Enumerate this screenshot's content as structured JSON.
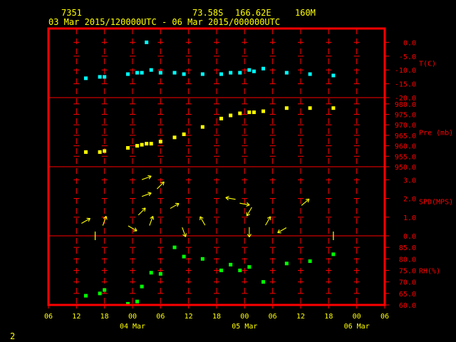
{
  "header": {
    "station": "7351",
    "lat": "73.58S",
    "lon": "166.62E",
    "elev": "160M",
    "period": "03 Mar 2015/120000UTC - 06 Mar 2015/000000UTC"
  },
  "page_number": "2",
  "colors": {
    "frame": "#ff0000",
    "grid": "#ff0000",
    "text": "#ffff00",
    "axis_labels": "#ff0000",
    "temperature": "#00ffff",
    "pressure": "#ffff00",
    "wind": "#ffff00",
    "rh": "#00ff00"
  },
  "chart_data": {
    "type": "scatter",
    "x_axis": {
      "unit": "hour",
      "start": "2015-03-03T06:00Z",
      "end": "2015-03-06T06:00Z",
      "tick_labels": [
        "06",
        "12",
        "18",
        "00",
        "06",
        "12",
        "18",
        "00",
        "06",
        "12",
        "18",
        "00",
        "06"
      ],
      "date_labels": [
        {
          "label": "04 Mar",
          "time": "2015-03-04T00:00Z"
        },
        {
          "label": "05 Mar",
          "time": "2015-03-05T00:00Z"
        },
        {
          "label": "06 Mar",
          "time": "2015-03-06T00:00Z"
        }
      ]
    },
    "panels": [
      {
        "name": "T(C)",
        "series": "temperature",
        "ylim": [
          -20,
          5
        ],
        "ticks": [
          0,
          -5,
          -10,
          -15,
          -20
        ],
        "tick_labels": [
          "0.0",
          "-5.0",
          "-10.0",
          "-15.0",
          "-20.0"
        ],
        "points": [
          [
            "2015-03-03T14:00Z",
            -13
          ],
          [
            "2015-03-03T17:00Z",
            -12.5
          ],
          [
            "2015-03-03T18:00Z",
            -12.5
          ],
          [
            "2015-03-03T23:00Z",
            -11.5
          ],
          [
            "2015-03-04T01:00Z",
            -11
          ],
          [
            "2015-03-04T02:00Z",
            -11
          ],
          [
            "2015-03-04T03:00Z",
            0
          ],
          [
            "2015-03-04T04:00Z",
            -10
          ],
          [
            "2015-03-04T06:00Z",
            -11
          ],
          [
            "2015-03-04T09:00Z",
            -11
          ],
          [
            "2015-03-04T11:00Z",
            -11.5
          ],
          [
            "2015-03-04T15:00Z",
            -11.5
          ],
          [
            "2015-03-04T19:00Z",
            -11.5
          ],
          [
            "2015-03-04T21:00Z",
            -11
          ],
          [
            "2015-03-04T23:00Z",
            -11
          ],
          [
            "2015-03-05T01:00Z",
            -10
          ],
          [
            "2015-03-05T02:00Z",
            -10.5
          ],
          [
            "2015-03-05T04:00Z",
            -9.5
          ],
          [
            "2015-03-05T09:00Z",
            -11
          ],
          [
            "2015-03-05T14:00Z",
            -11.5
          ],
          [
            "2015-03-05T19:00Z",
            -12
          ]
        ]
      },
      {
        "name": "Pre (mb)",
        "series": "pressure",
        "ylim": [
          950,
          983
        ],
        "ticks": [
          980,
          975,
          970,
          965,
          960,
          955,
          950
        ],
        "tick_labels": [
          "980.0",
          "975.0",
          "970.0",
          "965.0",
          "960.0",
          "955.0",
          "950.0"
        ],
        "points": [
          [
            "2015-03-03T14:00Z",
            957
          ],
          [
            "2015-03-03T17:00Z",
            957
          ],
          [
            "2015-03-03T18:00Z",
            957.5
          ],
          [
            "2015-03-03T23:00Z",
            959
          ],
          [
            "2015-03-04T01:00Z",
            960
          ],
          [
            "2015-03-04T02:00Z",
            960.5
          ],
          [
            "2015-03-04T03:00Z",
            961
          ],
          [
            "2015-03-04T04:00Z",
            961
          ],
          [
            "2015-03-04T06:00Z",
            962
          ],
          [
            "2015-03-04T09:00Z",
            964
          ],
          [
            "2015-03-04T11:00Z",
            965.5
          ],
          [
            "2015-03-04T15:00Z",
            969
          ],
          [
            "2015-03-04T19:00Z",
            973
          ],
          [
            "2015-03-04T21:00Z",
            974.5
          ],
          [
            "2015-03-04T23:00Z",
            975.5
          ],
          [
            "2015-03-05T01:00Z",
            976
          ],
          [
            "2015-03-05T02:00Z",
            976
          ],
          [
            "2015-03-05T04:00Z",
            976.5
          ],
          [
            "2015-03-05T09:00Z",
            978
          ],
          [
            "2015-03-05T14:00Z",
            978
          ],
          [
            "2015-03-05T19:00Z",
            978
          ]
        ]
      },
      {
        "name": "SPD(MPS)",
        "series": "wind",
        "ylim": [
          0,
          3.7
        ],
        "ticks": [
          3,
          2,
          1,
          0
        ],
        "tick_labels": [
          "3.0",
          "2.0",
          "1.0",
          "0.0"
        ],
        "points": [
          [
            "2015-03-03T14:00Z",
            0.8,
            60
          ],
          [
            "2015-03-03T16:00Z",
            0,
            0
          ],
          [
            "2015-03-03T18:00Z",
            0.8,
            20
          ],
          [
            "2015-03-04T00:00Z",
            0.4,
            120
          ],
          [
            "2015-03-04T02:00Z",
            1.3,
            45
          ],
          [
            "2015-03-04T03:00Z",
            2.2,
            70
          ],
          [
            "2015-03-04T03:00Z",
            3.1,
            70
          ],
          [
            "2015-03-04T04:00Z",
            0.8,
            20
          ],
          [
            "2015-03-04T06:00Z",
            2.7,
            45
          ],
          [
            "2015-03-04T09:00Z",
            1.6,
            60
          ],
          [
            "2015-03-04T11:00Z",
            0.2,
            160
          ],
          [
            "2015-03-04T15:00Z",
            0.8,
            330
          ],
          [
            "2015-03-04T21:00Z",
            2.0,
            280
          ],
          [
            "2015-03-05T00:00Z",
            1.7,
            100
          ],
          [
            "2015-03-05T01:00Z",
            0.2,
            180
          ],
          [
            "2015-03-05T01:00Z",
            1.3,
            210
          ],
          [
            "2015-03-05T05:00Z",
            0.8,
            30
          ],
          [
            "2015-03-05T08:00Z",
            0.3,
            240
          ],
          [
            "2015-03-05T13:00Z",
            1.8,
            50
          ],
          [
            "2015-03-05T19:00Z",
            0,
            0
          ]
        ]
      },
      {
        "name": "RH(%)",
        "series": "rh",
        "ylim": [
          60,
          90
        ],
        "ticks": [
          85,
          80,
          75,
          70,
          65,
          60
        ],
        "tick_labels": [
          "85.0",
          "80.0",
          "75.0",
          "70.0",
          "65.0",
          "60.0"
        ],
        "points": [
          [
            "2015-03-03T14:00Z",
            64
          ],
          [
            "2015-03-03T17:00Z",
            65
          ],
          [
            "2015-03-03T18:00Z",
            66.5
          ],
          [
            "2015-03-03T23:00Z",
            60.5
          ],
          [
            "2015-03-04T01:00Z",
            61.5
          ],
          [
            "2015-03-04T02:00Z",
            68
          ],
          [
            "2015-03-04T04:00Z",
            74
          ],
          [
            "2015-03-04T06:00Z",
            73.5
          ],
          [
            "2015-03-04T09:00Z",
            85
          ],
          [
            "2015-03-04T11:00Z",
            81
          ],
          [
            "2015-03-04T15:00Z",
            80
          ],
          [
            "2015-03-04T19:00Z",
            75
          ],
          [
            "2015-03-04T21:00Z",
            77.5
          ],
          [
            "2015-03-04T23:00Z",
            75
          ],
          [
            "2015-03-05T01:00Z",
            76.5
          ],
          [
            "2015-03-05T04:00Z",
            70
          ],
          [
            "2015-03-05T09:00Z",
            78
          ],
          [
            "2015-03-05T14:00Z",
            79
          ],
          [
            "2015-03-05T19:00Z",
            82
          ]
        ]
      }
    ]
  }
}
